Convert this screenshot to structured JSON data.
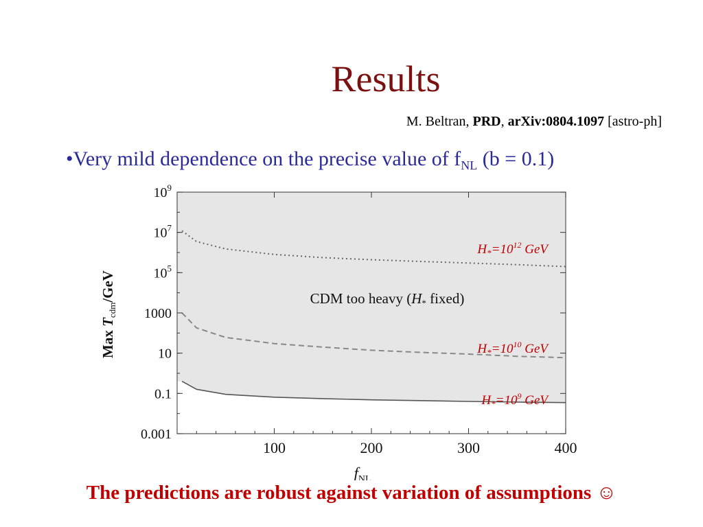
{
  "slide": {
    "title": "Results",
    "citation": {
      "author": "M. Beltran, ",
      "journal": "PRD",
      "sep": ", ",
      "arxiv": "arXiv:0804.1097",
      "category": " [astro-ph]"
    },
    "bullet": {
      "prefix": "•Very mild dependence on the precise value of f",
      "subscript": "NL",
      "suffix": "  (b = 0.1)"
    },
    "conclusion": "The predictions are robust against variation of assumptions ☺",
    "colors": {
      "title": "#7a1010",
      "bullet": "#2a2a9a",
      "conclusion": "#c00000",
      "annotation": "#c00000"
    }
  },
  "chart_data": {
    "type": "area",
    "scale": {
      "x": "linear",
      "y": "log"
    },
    "xlim": [
      0,
      400
    ],
    "ylim": [
      0.001,
      1000000000
    ],
    "x_ticks": [
      "100",
      "200",
      "300",
      "400"
    ],
    "x_tick_values": [
      100,
      200,
      300,
      400
    ],
    "y_ticks": [
      {
        "value": 0.001,
        "base": "0.001",
        "exp": ""
      },
      {
        "value": 0.1,
        "base": "0.1",
        "exp": ""
      },
      {
        "value": 10,
        "base": "10",
        "exp": ""
      },
      {
        "value": 1000,
        "base": "1000",
        "exp": ""
      },
      {
        "value": 100000,
        "base": "10",
        "exp": "5"
      },
      {
        "value": 10000000,
        "base": "10",
        "exp": "7"
      },
      {
        "value": 1000000000,
        "base": "10",
        "exp": "9"
      }
    ],
    "xlabel": {
      "main": "f",
      "sub": "NL"
    },
    "ylabel": {
      "prefix": "Max ",
      "var": "T",
      "sub": "cdm",
      "suffix": "/GeV"
    },
    "region_label": {
      "prefix": "CDM too heavy (",
      "var": "H",
      "sub": "*",
      "suffix": " fixed)"
    },
    "series": [
      {
        "name": "H*=10^12 GeV",
        "label_parts": {
          "h": "H",
          "star": "*",
          "eq": "=10",
          "exp": "12",
          "unit": " GeV"
        },
        "line_style": "dotted",
        "fill": "#aaaaaa",
        "x": [
          5,
          20,
          50,
          100,
          150,
          200,
          250,
          300,
          350,
          400
        ],
        "y": [
          12000000,
          3500000,
          1500000,
          800000,
          560000,
          440000,
          360000,
          300000,
          250000,
          200000
        ]
      },
      {
        "name": "H*=10^10 GeV",
        "label_parts": {
          "h": "H",
          "star": "*",
          "eq": "=10",
          "exp": "10",
          "unit": " GeV"
        },
        "line_style": "dashed",
        "fill": "#d0d0d0",
        "x": [
          5,
          20,
          50,
          100,
          150,
          200,
          250,
          300,
          350,
          400
        ],
        "y": [
          1000,
          180,
          60,
          30,
          20,
          14,
          11,
          9,
          7,
          6
        ]
      },
      {
        "name": "H*=10^9 GeV",
        "label_parts": {
          "h": "H",
          "star": "*",
          "eq": "=10",
          "exp": "9",
          "unit": " GeV"
        },
        "line_style": "solid",
        "fill": "#e6e6e6",
        "x": [
          5,
          20,
          50,
          100,
          150,
          200,
          250,
          300,
          350,
          400
        ],
        "y": [
          0.4,
          0.16,
          0.09,
          0.065,
          0.055,
          0.048,
          0.044,
          0.04,
          0.037,
          0.035
        ]
      }
    ]
  }
}
